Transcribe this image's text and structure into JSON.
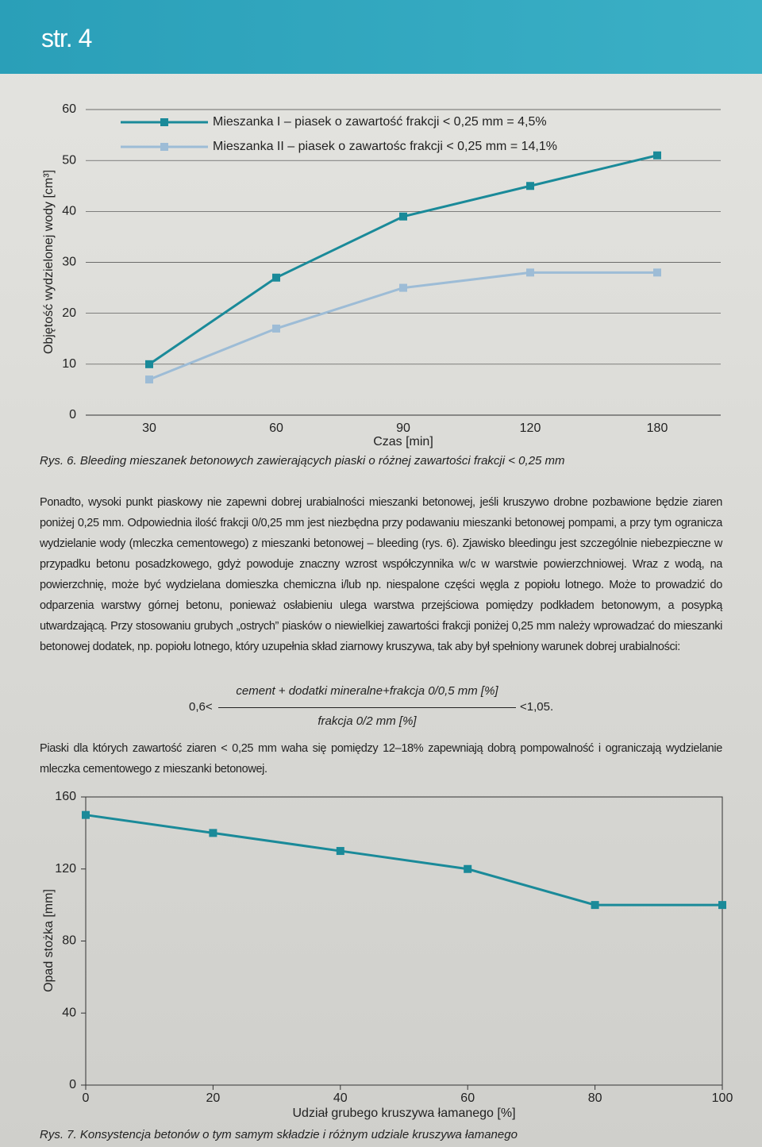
{
  "header": {
    "page": "str. 4"
  },
  "chart_data": [
    {
      "type": "line",
      "categories": [
        "30",
        "60",
        "90",
        "120",
        "180"
      ],
      "series": [
        {
          "name": "Mieszanka I – piasek o zawartość frakcji < 0,25 mm = 4,5%",
          "color": "#1a8a99",
          "values": [
            10,
            27,
            39,
            45,
            51
          ]
        },
        {
          "name": "Mieszanka II – piasek o zawartośc frakcji < 0,25 mm = 14,1%",
          "color": "#9dbcd6",
          "values": [
            7,
            17,
            25,
            28,
            28
          ]
        }
      ],
      "ylim": [
        0,
        60
      ],
      "yticks": [
        0,
        10,
        20,
        30,
        40,
        50,
        60
      ],
      "grid": true,
      "xlabel": "Czas [min]",
      "ylabel": "Objętość wydzielonej wody [cm³]",
      "caption": "Rys. 6. Bleeding mieszanek betonowych zawierających piaski o różnej zawartości frakcji < 0,25 mm"
    },
    {
      "type": "line",
      "x": [
        0,
        20,
        40,
        60,
        80,
        100
      ],
      "values": [
        150,
        140,
        130,
        120,
        100,
        100
      ],
      "color": "#1a8a99",
      "xlim": [
        0,
        100
      ],
      "xticks": [
        0,
        20,
        40,
        60,
        80,
        100
      ],
      "ylim": [
        0,
        160
      ],
      "yticks": [
        0,
        40,
        80,
        120,
        160
      ],
      "grid": false,
      "xlabel": "Udział grubego kruszywa łamanego [%]",
      "ylabel": "Opad stożka [mm]",
      "caption": "Rys. 7. Konsystencja betonów o tym samym składzie i różnym udziale kruszywa łamanego"
    }
  ],
  "text": {
    "paragraph1": "Ponadto, wysoki punkt piaskowy nie zapewni dobrej urabialności mieszanki betonowej, jeśli kruszywo drobne pozbawione będzie ziaren poniżej 0,25 mm. Odpowiednia ilość frakcji 0/0,25 mm jest niezbędna przy podawaniu mieszanki betonowej pompami, a przy tym ogranicza wydzielanie wody (mleczka cementowego) z mieszanki betonowej – bleeding (rys. 6). Zjawisko bleedingu jest szczególnie niebezpieczne w przypadku betonu posadzkowego, gdyż powoduje znaczny wzrost współczynnika w/c w warstwie powierzchniowej. Wraz z wodą, na powierzchnię, może być wydzielana domieszka chemiczna i/lub np. niespalone części węgla z popiołu lotnego. Może to prowadzić do odparzenia warstwy górnej betonu, ponieważ osłabieniu ulega warstwa przejściowa pomiędzy podkładem betonowym, a posypką utwardzającą. Przy stosowaniu grubych „ostrych” piasków o niewielkiej zawartości frakcji poniżej 0,25 mm należy wprowadzać do mieszanki betonowej dodatek, np. popiołu lotnego, który uzupełnia skład ziarnowy kruszywa, tak aby był spełniony warunek dobrej urabialności:",
    "formula": {
      "left": "0,6<",
      "numerator": "cement + dodatki mineralne+frakcja 0/0,5 mm [%]",
      "denominator": "frakcja 0/2 mm [%]",
      "right": "<1,05."
    },
    "paragraph2": "Piaski dla których zawartość ziaren < 0,25 mm waha się pomiędzy 12–18% zapewniają dobrą pompowalność i ograniczają wydzielanie mleczka cementowego z mieszanki betonowej."
  }
}
